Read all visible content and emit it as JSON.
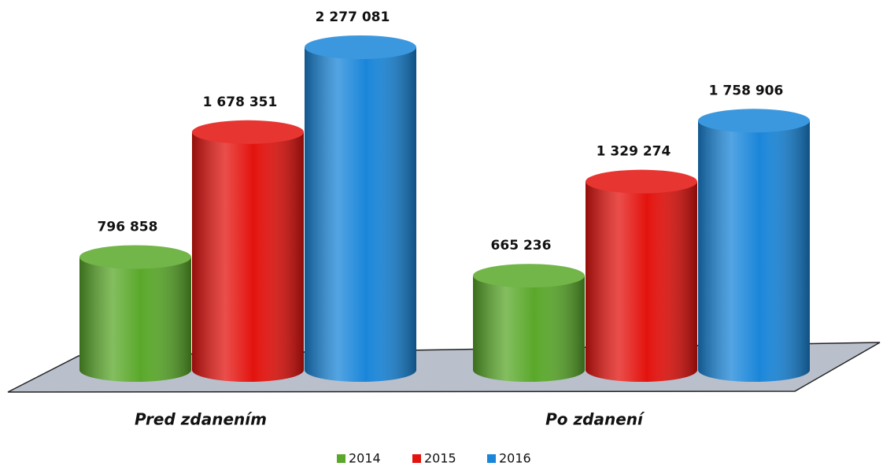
{
  "chart_data": {
    "type": "cylinder",
    "categories": [
      "Pred zdanením",
      "Po zdanení"
    ],
    "series": [
      {
        "name": "2014",
        "color": "#5aa82a",
        "values": [
          796858,
          665236
        ],
        "value_labels": [
          "796 858",
          "665 236"
        ]
      },
      {
        "name": "2015",
        "color": "#e3130e",
        "values": [
          1678351,
          1329274
        ],
        "value_labels": [
          "1 678 351",
          "1 329 274"
        ]
      },
      {
        "name": "2016",
        "color": "#1a86d9",
        "values": [
          2277081,
          1758906
        ],
        "value_labels": [
          "2 277 081",
          "1 758 906"
        ]
      }
    ]
  }
}
